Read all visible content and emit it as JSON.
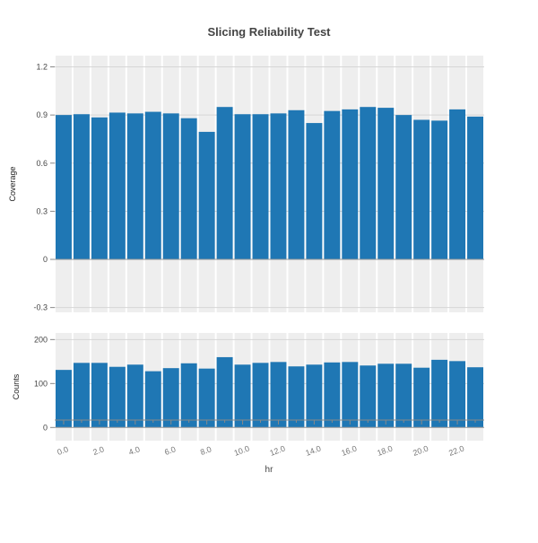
{
  "chart_data": {
    "type": "bar",
    "title": "Slicing Reliability Test",
    "xlabel": "hr",
    "x": [
      0,
      1,
      2,
      3,
      4,
      5,
      6,
      7,
      8,
      9,
      10,
      11,
      12,
      13,
      14,
      15,
      16,
      17,
      18,
      19,
      20,
      21,
      22,
      23
    ],
    "xticklabels": [
      "0.0",
      "2.0",
      "4.0",
      "6.0",
      "8.0",
      "10.0",
      "12.0",
      "14.0",
      "16.0",
      "18.0",
      "20.0",
      "22.0"
    ],
    "panels": [
      {
        "ylabel": "Coverage",
        "ylim": [
          -0.33,
          1.27
        ],
        "yticks": [
          "-0.3",
          "0",
          "0.3",
          "0.6",
          "0.9",
          "1.2"
        ],
        "values": [
          0.9,
          0.905,
          0.885,
          0.915,
          0.91,
          0.92,
          0.91,
          0.88,
          0.795,
          0.95,
          0.905,
          0.905,
          0.91,
          0.93,
          0.85,
          0.925,
          0.935,
          0.95,
          0.945,
          0.9,
          0.87,
          0.865,
          0.935,
          0.89
        ]
      },
      {
        "ylabel": "Counts",
        "ylim": [
          -30,
          215
        ],
        "yticks": [
          "0",
          "100",
          "200"
        ],
        "values": [
          131,
          147,
          147,
          138,
          143,
          128,
          135,
          146,
          134,
          160,
          143,
          147,
          149,
          139,
          143,
          148,
          149,
          141,
          145,
          145,
          136,
          154,
          151,
          137
        ]
      }
    ],
    "colors": {
      "bar": "#1f77b4",
      "panel_bg": "#eeeeee",
      "grid": "#ffffff",
      "axis": "#888888",
      "text": "#444444",
      "title": "#444444"
    },
    "grid": true
  }
}
